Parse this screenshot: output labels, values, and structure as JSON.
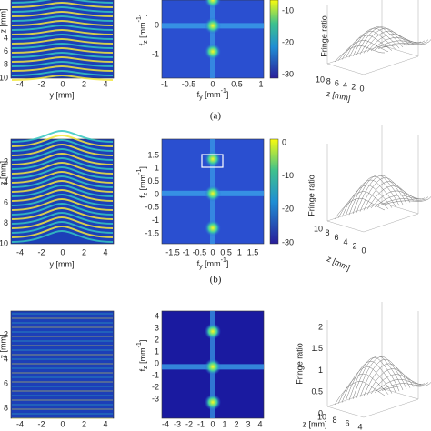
{
  "rows": [
    {
      "caption": "(a)",
      "interferogram": {
        "xlabel": "y [mm]",
        "ylabel": "z [mm]",
        "xticks": [
          "-4",
          "-2",
          "0",
          "2",
          "4"
        ],
        "yticks": [
          "4",
          "6",
          "8",
          "10"
        ]
      },
      "spectrum": {
        "xlabel": {
          "f": "f",
          "sub": "y",
          "unit": " [mm",
          "sup": "-1",
          "close": "]"
        },
        "ylabel": {
          "f": "f",
          "sub": "z",
          "unit": " [mm",
          "sup": "-1",
          "close": "]"
        },
        "xticks": [
          "-1",
          "-0.5",
          "0",
          "0.5",
          "1"
        ],
        "yticks": [
          "0",
          "-1"
        ],
        "colorbar_ticks": [
          "-10",
          "-20",
          "-30"
        ]
      },
      "fringe": {
        "xlabel": "z [mm]",
        "zlabel": "Fringe ratio",
        "xticks": [
          "10",
          "8",
          "6",
          "4",
          "2",
          "0"
        ]
      }
    },
    {
      "caption": "(b)",
      "interferogram": {
        "xlabel": "y [mm]",
        "ylabel": "z [mm]",
        "xticks": [
          "-4",
          "-2",
          "0",
          "2",
          "4"
        ],
        "yticks": [
          "2",
          "4",
          "6",
          "8",
          "10"
        ]
      },
      "spectrum": {
        "xlabel": {
          "f": "f",
          "sub": "y",
          "unit": " [mm",
          "sup": "-1",
          "close": "]"
        },
        "ylabel": {
          "f": "f",
          "sub": "z",
          "unit": " [mm",
          "sup": "-1",
          "close": "]"
        },
        "xticks": [
          "-1.5",
          "-1",
          "-0.5",
          "0",
          "0.5",
          "1",
          "1.5"
        ],
        "yticks": [
          "1.5",
          "1",
          "0.5",
          "0",
          "-0.5",
          "-1",
          "-1.5"
        ],
        "colorbar_ticks": [
          "0",
          "-10",
          "-20",
          "-30"
        ]
      },
      "fringe": {
        "xlabel": "z [mm]",
        "zlabel": "Fringe ratio",
        "xticks": [
          "10",
          "8",
          "6",
          "4",
          "2",
          "0"
        ]
      }
    },
    {
      "interferogram": {
        "ylabel": "z [mm]",
        "xticks": [
          "-4",
          "-2",
          "0",
          "2",
          "4"
        ],
        "yticks": [
          "2",
          "4",
          "6",
          "8"
        ]
      },
      "spectrum": {
        "ylabel": {
          "f": "f",
          "sub": "z",
          "unit": " [mm",
          "sup": "-1",
          "close": "]"
        },
        "xticks": [
          "-4",
          "-3",
          "-2",
          "-1",
          "0",
          "1",
          "2",
          "3",
          "4"
        ],
        "yticks": [
          "4",
          "3",
          "2",
          "1",
          "0",
          "-1",
          "-2",
          "-3"
        ]
      },
      "fringe": {
        "xlabel": "z [mm]",
        "zlabel": "Fringe ratio",
        "xticks": [
          "10",
          "8",
          "6",
          "4"
        ],
        "yticks": [
          "2",
          "1.5",
          "1",
          "0.5",
          "0"
        ]
      }
    }
  ]
}
